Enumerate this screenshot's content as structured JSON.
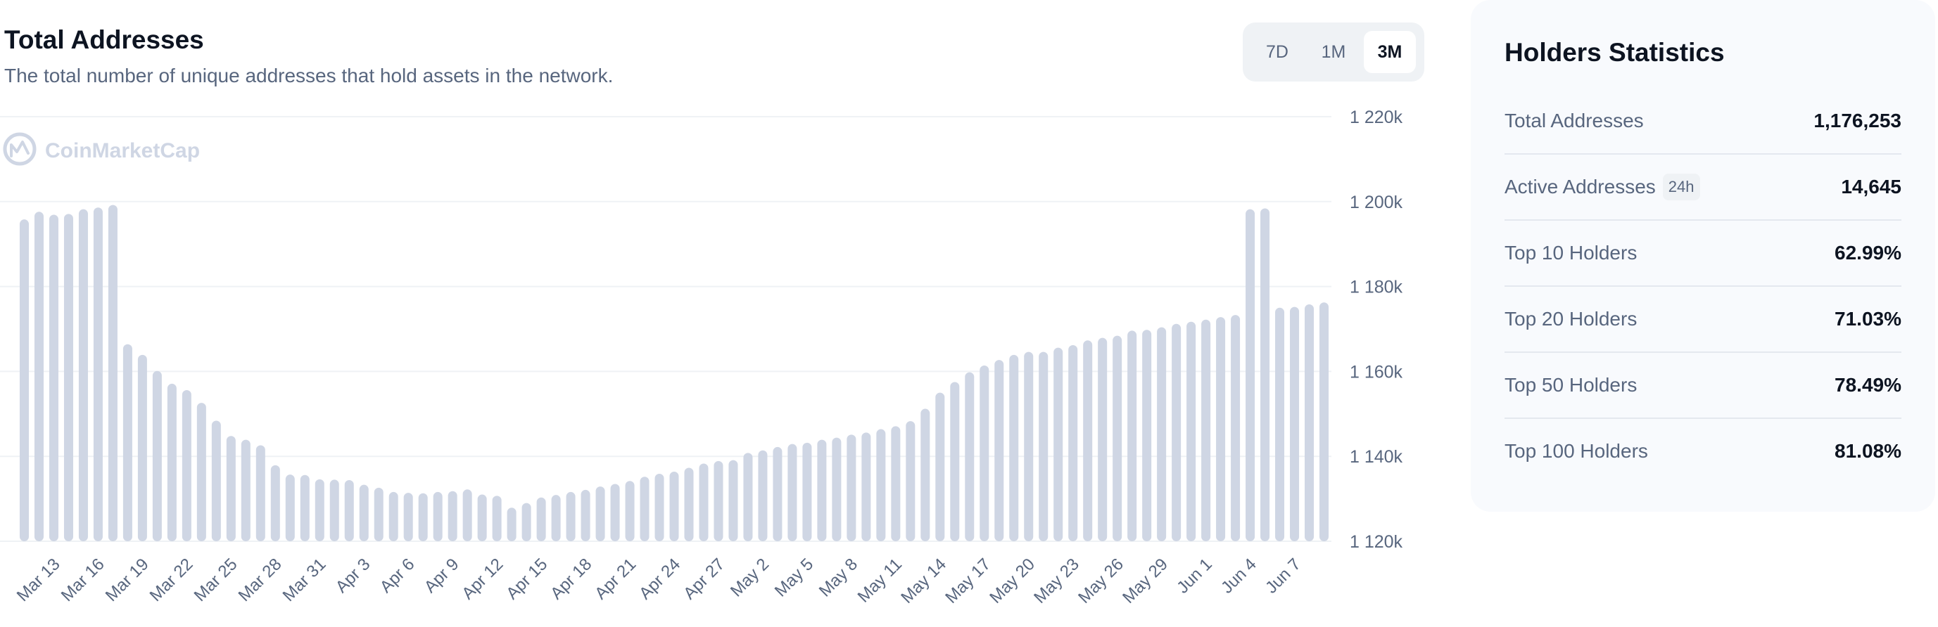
{
  "header": {
    "title": "Total Addresses",
    "subtitle": "The total number of unique addresses that hold assets in the network."
  },
  "range_toggle": {
    "options": [
      "7D",
      "1M",
      "3M"
    ],
    "selected": "3M"
  },
  "watermark": {
    "text": "CoinMarketCap",
    "icon": "coinmarketcap-logo-icon"
  },
  "chart_data": {
    "type": "bar",
    "title": "Total Addresses",
    "ylim": [
      1120000,
      1220000
    ],
    "y_ticks": [
      1120000,
      1140000,
      1160000,
      1180000,
      1200000,
      1220000
    ],
    "y_tick_labels": [
      "1 120k",
      "1 140k",
      "1 160k",
      "1 180k",
      "1 200k",
      "1 220k"
    ],
    "x_tick_labels": [
      "Mar 13",
      "Mar 16",
      "Mar 19",
      "Mar 22",
      "Mar 25",
      "Mar 28",
      "Mar 31",
      "Apr 3",
      "Apr 6",
      "Apr 9",
      "Apr 12",
      "Apr 15",
      "Apr 18",
      "Apr 21",
      "Apr 24",
      "Apr 27",
      "May 2",
      "May 5",
      "May 8",
      "May 11",
      "May 14",
      "May 17",
      "May 20",
      "May 23",
      "May 26",
      "May 29",
      "Jun 1",
      "Jun 4",
      "Jun 7"
    ],
    "x_tick_positions": [
      2,
      5,
      8,
      11,
      14,
      17,
      20,
      23,
      26,
      29,
      32,
      35,
      38,
      41,
      44,
      47,
      50,
      53,
      56,
      59,
      62,
      65,
      68,
      71,
      74,
      77,
      80,
      83,
      86
    ],
    "values": [
      1195800,
      1197600,
      1196900,
      1197100,
      1198200,
      1198600,
      1199200,
      1166400,
      1163900,
      1160100,
      1157100,
      1155600,
      1152600,
      1148400,
      1144800,
      1143900,
      1142600,
      1137900,
      1135700,
      1135600,
      1134600,
      1134500,
      1134400,
      1133300,
      1132600,
      1131600,
      1131400,
      1131300,
      1131600,
      1131800,
      1132200,
      1131000,
      1130700,
      1127900,
      1129000,
      1130300,
      1130900,
      1131600,
      1132100,
      1132900,
      1133500,
      1134200,
      1135200,
      1135900,
      1136400,
      1137300,
      1138300,
      1138900,
      1139100,
      1140800,
      1141400,
      1142200,
      1142900,
      1143200,
      1143900,
      1144400,
      1145100,
      1145600,
      1146400,
      1147100,
      1148300,
      1151200,
      1155000,
      1157500,
      1159800,
      1161400,
      1162700,
      1163900,
      1164600,
      1164600,
      1165600,
      1166200,
      1167300,
      1167900,
      1168400,
      1169600,
      1169800,
      1170400,
      1171200,
      1171700,
      1172200,
      1172800,
      1173300,
      1198200,
      1198400,
      1175000,
      1175200,
      1175800,
      1176253
    ],
    "bar_color": "#cfd6e4",
    "grid": true
  },
  "stats": {
    "title": "Holders Statistics",
    "rows": [
      {
        "label": "Total Addresses",
        "value": "1,176,253",
        "badge": ""
      },
      {
        "label": "Active Addresses",
        "value": "14,645",
        "badge": "24h"
      },
      {
        "label": "Top 10 Holders",
        "value": "62.99%",
        "badge": ""
      },
      {
        "label": "Top 20 Holders",
        "value": "71.03%",
        "badge": ""
      },
      {
        "label": "Top 50 Holders",
        "value": "78.49%",
        "badge": ""
      },
      {
        "label": "Top 100 Holders",
        "value": "81.08%",
        "badge": ""
      }
    ]
  },
  "colors": {
    "text_primary": "#0d1421",
    "text_secondary": "#58667e",
    "grid": "#eff2f5",
    "panel_bg": "#f8fafd",
    "watermark": "#cfd6e4"
  }
}
